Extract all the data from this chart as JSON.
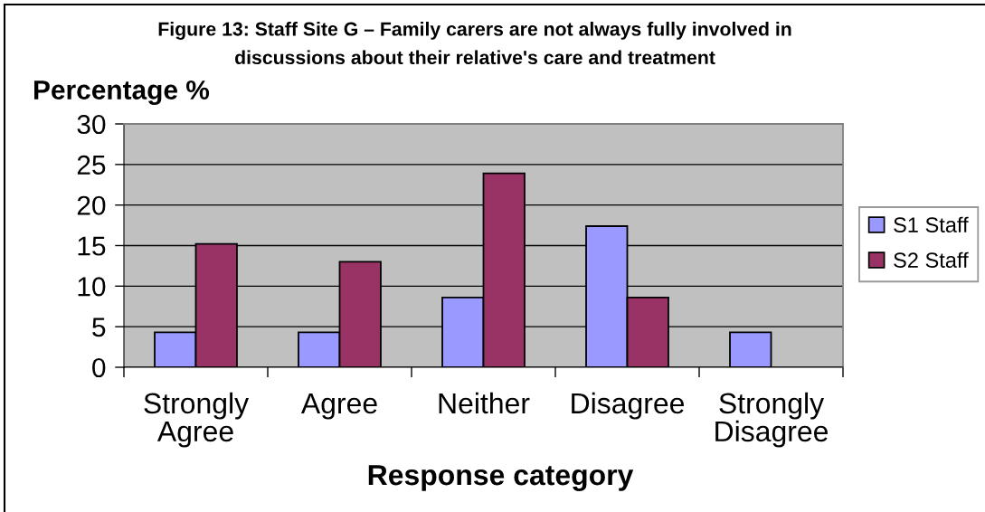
{
  "chart_data": {
    "type": "bar",
    "title": "Figure 13: Staff Site G – Family carers are not always fully involved in\ndiscussions about their relative's care and treatment",
    "xlabel": "Response category",
    "ylabel": "Percentage %",
    "categories": [
      "Strongly\nAgree",
      "Agree",
      "Neither",
      "Disagree",
      "Strongly\nDisagree"
    ],
    "series": [
      {
        "name": "S1 Staff",
        "color": "#9999ff",
        "values": [
          4.3,
          4.3,
          8.6,
          17.4,
          4.3
        ]
      },
      {
        "name": "S2 Staff",
        "color": "#993366",
        "values": [
          15.2,
          13.0,
          23.9,
          8.6,
          null
        ]
      }
    ],
    "ylim": [
      0,
      30
    ],
    "yticks": [
      0,
      5,
      10,
      15,
      20,
      25,
      30
    ],
    "grid": "y",
    "legend": "right"
  }
}
